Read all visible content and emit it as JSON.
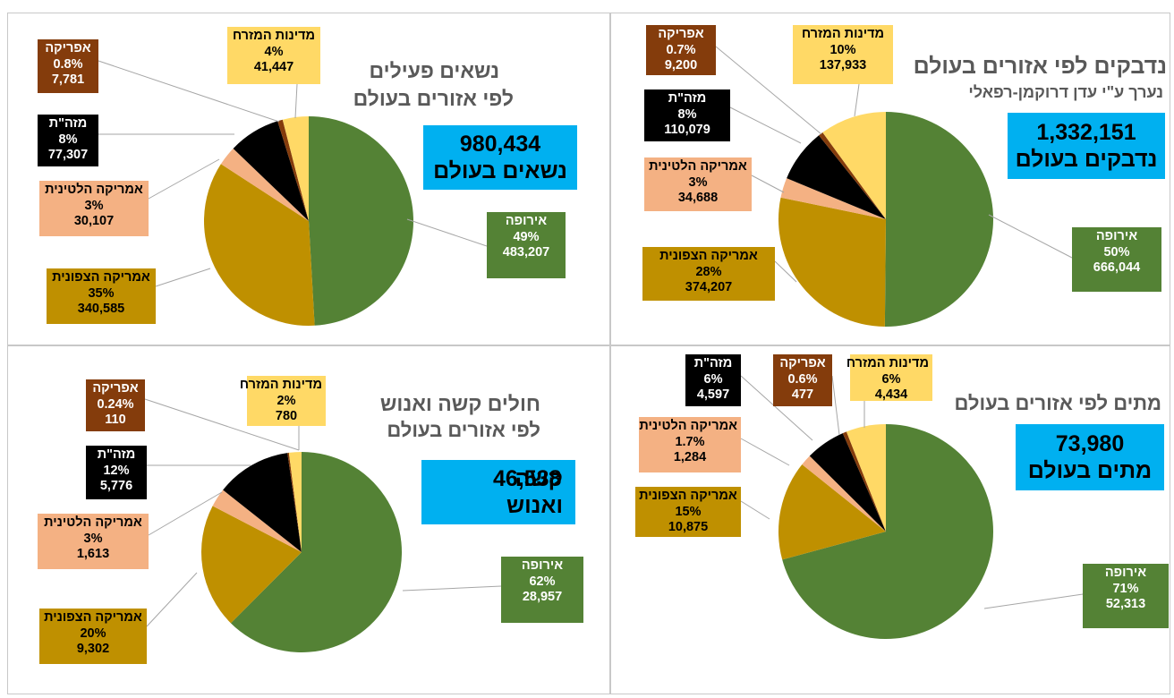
{
  "colors": {
    "europe": "#548235",
    "north_america": "#bf9000",
    "latin_america": "#f4b183",
    "east_asia": "#000000",
    "africa": "#843c0c",
    "middle_east": "#ffd966",
    "total_box": "#00b0f0"
  },
  "chart_data": [
    {
      "type": "pie",
      "title": "נדבקים לפי אזורים בעולם",
      "subtitle": "נערך ע\"י עדן דרוקמן-רפאלי",
      "total_value": "1,332,151",
      "total_label": "נדבקים בעולם",
      "slices": [
        {
          "category": "אירופה",
          "percent": "50%",
          "value": "666,044",
          "color": "#548235"
        },
        {
          "category": "אמריקה הצפונית",
          "percent": "28%",
          "value": "374,207",
          "color": "#bf9000"
        },
        {
          "category": "אמריקה הלטינית",
          "percent": "3%",
          "value": "34,688",
          "color": "#f4b183"
        },
        {
          "category": "מזה\"ת",
          "percent": "8%",
          "value": "110,079",
          "color": "#000000"
        },
        {
          "category": "אפריקה",
          "percent": "0.7%",
          "value": "9,200",
          "color": "#843c0c"
        },
        {
          "category": "מדינות המזרח",
          "percent": "10%",
          "value": "137,933",
          "color": "#ffd966"
        }
      ]
    },
    {
      "type": "pie",
      "title": "נשאים פעילים",
      "subtitle": "לפי אזורים בעולם",
      "total_value": "980,434",
      "total_label": "נשאים בעולם",
      "slices": [
        {
          "category": "אירופה",
          "percent": "49%",
          "value": "483,207",
          "color": "#548235"
        },
        {
          "category": "אמריקה הצפונית",
          "percent": "35%",
          "value": "340,585",
          "color": "#bf9000"
        },
        {
          "category": "אמריקה הלטינית",
          "percent": "3%",
          "value": "30,107",
          "color": "#f4b183"
        },
        {
          "category": "מזה\"ת",
          "percent": "8%",
          "value": "77,307",
          "color": "#000000"
        },
        {
          "category": "אפריקה",
          "percent": "0.8%",
          "value": "7,781",
          "color": "#843c0c"
        },
        {
          "category": "מדינות המזרח",
          "percent": "4%",
          "value": "41,447",
          "color": "#ffd966"
        }
      ]
    },
    {
      "type": "pie",
      "title": "מתים לפי אזורים בעולם",
      "subtitle": "",
      "total_value": "73,980",
      "total_label": "מתים בעולם",
      "slices": [
        {
          "category": "אירופה",
          "percent": "71%",
          "value": "52,313",
          "color": "#548235"
        },
        {
          "category": "אמריקה הצפונית",
          "percent": "15%",
          "value": "10,875",
          "color": "#bf9000"
        },
        {
          "category": "אמריקה הלטינית",
          "percent": "1.7%",
          "value": "1,284",
          "color": "#f4b183"
        },
        {
          "category": "מזה\"ת",
          "percent": "6%",
          "value": "4,597",
          "color": "#000000"
        },
        {
          "category": "אפריקה",
          "percent": "0.6%",
          "value": "477",
          "color": "#843c0c"
        },
        {
          "category": "מדינות המזרח",
          "percent": "6%",
          "value": "4,434",
          "color": "#ffd966"
        }
      ]
    },
    {
      "type": "pie",
      "title": "חולים קשה ואנוש",
      "subtitle": "לפי אזורים בעולם",
      "total_value": "46,538",
      "total_label": "קשה ואנוש",
      "slices": [
        {
          "category": "אירופה",
          "percent": "62%",
          "value": "28,957",
          "color": "#548235"
        },
        {
          "category": "אמריקה הצפונית",
          "percent": "20%",
          "value": "9,302",
          "color": "#bf9000"
        },
        {
          "category": "אמריקה הלטינית",
          "percent": "3%",
          "value": "1,613",
          "color": "#f4b183"
        },
        {
          "category": "מזה\"ת",
          "percent": "12%",
          "value": "5,776",
          "color": "#000000"
        },
        {
          "category": "אפריקה",
          "percent": "0.24%",
          "value": "110",
          "color": "#843c0c"
        },
        {
          "category": "מדינות המזרח",
          "percent": "2%",
          "value": "780",
          "color": "#ffd966"
        }
      ]
    }
  ]
}
